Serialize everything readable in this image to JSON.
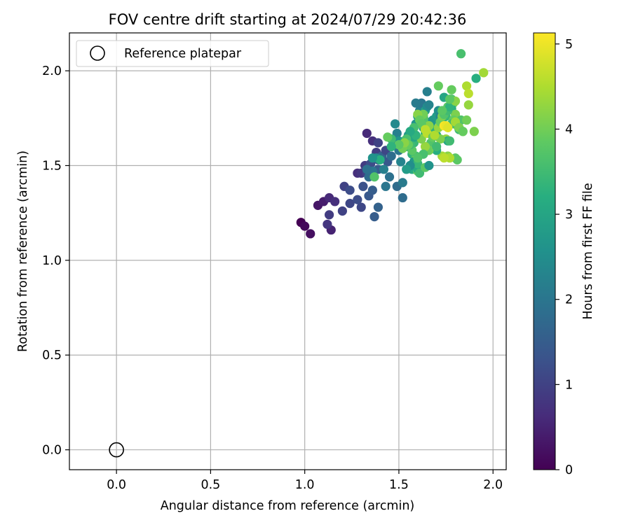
{
  "chart_data": {
    "type": "scatter",
    "title": "FOV centre drift starting at 2024/07/29 20:42:36",
    "xlabel": "Angular distance from reference (arcmin)",
    "ylabel": "Rotation from reference (arcmin)",
    "xlim": [
      -0.25,
      2.07
    ],
    "ylim": [
      -0.105,
      2.2
    ],
    "xticks": [
      0.0,
      0.5,
      1.0,
      1.5,
      2.0
    ],
    "xtick_labels": [
      "0.0",
      "0.5",
      "1.0",
      "1.5",
      "2.0"
    ],
    "yticks": [
      0.0,
      0.5,
      1.0,
      1.5,
      2.0
    ],
    "ytick_labels": [
      "0.0",
      "0.5",
      "1.0",
      "1.5",
      "2.0"
    ],
    "grid": true,
    "legend": {
      "position": "top-left",
      "entries": [
        "Reference platepar"
      ]
    },
    "reference_point": {
      "x": 0.0,
      "y": 0.0,
      "marker": "open-circle"
    },
    "colorbar": {
      "label": "Hours from first FF file",
      "min": 0,
      "max": 5.13,
      "ticks": [
        0,
        1,
        2,
        3,
        4,
        5
      ],
      "tick_labels": [
        "0",
        "1",
        "2",
        "3",
        "4",
        "5"
      ],
      "colormap": "viridis"
    },
    "series": [
      {
        "points": [
          [
            0.98,
            1.2,
            0.0
          ],
          [
            1.0,
            1.18,
            0.1
          ],
          [
            1.03,
            1.14,
            0.2
          ],
          [
            1.07,
            1.29,
            0.3
          ],
          [
            1.1,
            1.31,
            0.4
          ],
          [
            1.14,
            1.16,
            0.5
          ],
          [
            1.13,
            1.33,
            0.6
          ],
          [
            1.16,
            1.31,
            0.7
          ],
          [
            1.12,
            1.19,
            0.8
          ],
          [
            1.13,
            1.24,
            0.9
          ],
          [
            1.2,
            1.26,
            1.0
          ],
          [
            1.21,
            1.39,
            1.0
          ],
          [
            1.24,
            1.3,
            1.1
          ],
          [
            1.24,
            1.37,
            1.2
          ],
          [
            1.3,
            1.28,
            1.1
          ],
          [
            1.28,
            1.32,
            1.2
          ],
          [
            1.31,
            1.39,
            1.3
          ],
          [
            1.34,
            1.34,
            1.4
          ],
          [
            1.36,
            1.37,
            1.5
          ],
          [
            1.37,
            1.23,
            1.5
          ],
          [
            1.39,
            1.28,
            1.6
          ],
          [
            1.28,
            1.46,
            0.7
          ],
          [
            1.3,
            1.46,
            0.8
          ],
          [
            1.32,
            1.5,
            0.9
          ],
          [
            1.33,
            1.46,
            1.0
          ],
          [
            1.35,
            1.51,
            1.2
          ],
          [
            1.33,
            1.67,
            0.6
          ],
          [
            1.36,
            1.63,
            0.7
          ],
          [
            1.38,
            1.57,
            0.9
          ],
          [
            1.39,
            1.62,
            1.0
          ],
          [
            1.39,
            1.53,
            1.3
          ],
          [
            1.39,
            1.48,
            1.5
          ],
          [
            1.41,
            1.55,
            1.6
          ],
          [
            1.43,
            1.58,
            1.1
          ],
          [
            1.44,
            1.52,
            1.4
          ],
          [
            1.43,
            1.39,
            2.0
          ],
          [
            1.45,
            1.44,
            1.9
          ],
          [
            1.42,
            1.48,
            2.2
          ],
          [
            1.38,
            1.54,
            2.4
          ],
          [
            1.36,
            1.47,
            2.0
          ],
          [
            1.34,
            1.44,
            1.8
          ],
          [
            1.33,
            1.48,
            1.9
          ],
          [
            1.46,
            1.55,
            1.8
          ],
          [
            1.47,
            1.61,
            1.9
          ],
          [
            1.49,
            1.39,
            1.8
          ],
          [
            1.52,
            1.33,
            1.8
          ],
          [
            1.52,
            1.41,
            2.1
          ],
          [
            1.51,
            1.52,
            2.3
          ],
          [
            1.5,
            1.58,
            2.0
          ],
          [
            1.48,
            1.63,
            2.1
          ],
          [
            1.49,
            1.67,
            2.2
          ],
          [
            1.48,
            1.72,
            2.4
          ],
          [
            1.5,
            1.63,
            2.6
          ],
          [
            1.52,
            1.6,
            2.8
          ],
          [
            1.53,
            1.63,
            3.0
          ],
          [
            1.54,
            1.6,
            3.2
          ],
          [
            1.55,
            1.66,
            2.7
          ],
          [
            1.56,
            1.5,
            2.9
          ],
          [
            1.57,
            1.48,
            3.1
          ],
          [
            1.57,
            1.56,
            3.3
          ],
          [
            1.58,
            1.62,
            3.4
          ],
          [
            1.59,
            1.55,
            3.6
          ],
          [
            1.6,
            1.47,
            3.9
          ],
          [
            1.59,
            1.53,
            4.1
          ],
          [
            1.57,
            1.58,
            3.8
          ],
          [
            1.56,
            1.61,
            3.5
          ],
          [
            1.58,
            1.65,
            3.0
          ],
          [
            1.59,
            1.72,
            2.6
          ],
          [
            1.6,
            1.76,
            2.8
          ],
          [
            1.61,
            1.79,
            2.2
          ],
          [
            1.62,
            1.83,
            2.0
          ],
          [
            1.59,
            1.83,
            2.1
          ],
          [
            1.63,
            1.76,
            3.2
          ],
          [
            1.64,
            1.79,
            2.9
          ],
          [
            1.65,
            1.81,
            2.5
          ],
          [
            1.66,
            1.82,
            2.3
          ],
          [
            1.65,
            1.89,
            2.2
          ],
          [
            1.63,
            1.7,
            3.0
          ],
          [
            1.64,
            1.67,
            3.4
          ],
          [
            1.65,
            1.73,
            3.7
          ],
          [
            1.66,
            1.68,
            3.6
          ],
          [
            1.67,
            1.71,
            2.9
          ],
          [
            1.68,
            1.74,
            2.7
          ],
          [
            1.69,
            1.69,
            3.3
          ],
          [
            1.7,
            1.66,
            3.1
          ],
          [
            1.7,
            1.76,
            2.8
          ],
          [
            1.71,
            1.79,
            2.5
          ],
          [
            1.72,
            1.76,
            2.3
          ],
          [
            1.73,
            1.73,
            2.6
          ],
          [
            1.74,
            1.78,
            2.9
          ],
          [
            1.74,
            1.86,
            3.0
          ],
          [
            1.75,
            1.76,
            3.4
          ],
          [
            1.76,
            1.81,
            3.8
          ],
          [
            1.78,
            1.85,
            3.6
          ],
          [
            1.79,
            1.83,
            4.0
          ],
          [
            1.78,
            1.8,
            3.2
          ],
          [
            1.8,
            1.77,
            4.1
          ],
          [
            1.79,
            1.74,
            3.9
          ],
          [
            1.81,
            1.71,
            4.2
          ],
          [
            1.82,
            1.69,
            3.5
          ],
          [
            1.83,
            1.74,
            3.7
          ],
          [
            1.84,
            1.68,
            4.0
          ],
          [
            1.8,
            1.54,
            3.8
          ],
          [
            1.76,
            1.55,
            4.2
          ],
          [
            1.73,
            1.55,
            4.4
          ],
          [
            1.75,
            1.64,
            4.3
          ],
          [
            1.76,
            1.63,
            3.0
          ],
          [
            1.77,
            1.63,
            3.5
          ],
          [
            1.72,
            1.64,
            4.1
          ],
          [
            1.7,
            1.58,
            3.2
          ],
          [
            1.69,
            1.6,
            2.9
          ],
          [
            1.67,
            1.62,
            3.7
          ],
          [
            1.66,
            1.58,
            4.0
          ],
          [
            1.65,
            1.58,
            3.9
          ],
          [
            1.64,
            1.6,
            4.3
          ],
          [
            1.63,
            1.56,
            3.6
          ],
          [
            1.62,
            1.64,
            4.1
          ],
          [
            1.64,
            1.69,
            4.5
          ],
          [
            1.65,
            1.67,
            4.6
          ],
          [
            1.66,
            1.71,
            4.2
          ],
          [
            1.63,
            1.77,
            4.0
          ],
          [
            1.6,
            1.77,
            4.2
          ],
          [
            1.61,
            1.74,
            3.9
          ],
          [
            1.62,
            1.72,
            3.8
          ],
          [
            1.58,
            1.7,
            3.6
          ],
          [
            1.59,
            1.66,
            3.3
          ],
          [
            1.56,
            1.68,
            3.1
          ],
          [
            1.54,
            1.64,
            3.6
          ],
          [
            1.55,
            1.61,
            3.9
          ],
          [
            1.52,
            1.59,
            4.0
          ],
          [
            1.53,
            1.62,
            4.2
          ],
          [
            1.5,
            1.61,
            3.8
          ],
          [
            1.46,
            1.64,
            3.5
          ],
          [
            1.44,
            1.65,
            3.9
          ],
          [
            1.46,
            1.6,
            3.3
          ],
          [
            1.37,
            1.44,
            3.7
          ],
          [
            1.4,
            1.53,
            3.2
          ],
          [
            1.36,
            1.54,
            2.6
          ],
          [
            1.6,
            1.48,
            3.1
          ],
          [
            1.61,
            1.46,
            3.5
          ],
          [
            1.58,
            1.52,
            2.7
          ],
          [
            1.6,
            1.51,
            3.4
          ],
          [
            1.64,
            1.49,
            3.8
          ],
          [
            1.66,
            1.5,
            2.6
          ],
          [
            1.68,
            1.65,
            3.9
          ],
          [
            1.69,
            1.66,
            4.5
          ],
          [
            1.71,
            1.7,
            4.3
          ],
          [
            1.72,
            1.73,
            3.9
          ],
          [
            1.73,
            1.76,
            4.1
          ],
          [
            1.74,
            1.77,
            3.7
          ],
          [
            1.76,
            1.79,
            3.5
          ],
          [
            1.77,
            1.81,
            3.3
          ],
          [
            1.78,
            1.72,
            3.5
          ],
          [
            1.8,
            1.73,
            4.4
          ],
          [
            1.82,
            1.7,
            4.1
          ],
          [
            1.73,
            1.79,
            3.8
          ],
          [
            1.71,
            1.92,
            3.9
          ],
          [
            1.78,
            1.9,
            3.9
          ],
          [
            1.8,
            1.84,
            4.2
          ],
          [
            1.77,
            1.85,
            3.8
          ],
          [
            1.74,
            1.71,
            5.1
          ],
          [
            1.75,
            1.71,
            5.0
          ],
          [
            1.76,
            1.7,
            4.9
          ],
          [
            1.86,
            1.92,
            4.5
          ],
          [
            1.87,
            1.88,
            4.6
          ],
          [
            1.87,
            1.82,
            4.3
          ],
          [
            1.86,
            1.74,
            4.0
          ],
          [
            1.84,
            1.68,
            3.9
          ],
          [
            1.9,
            1.68,
            4.1
          ],
          [
            1.91,
            1.96,
            3.2
          ],
          [
            1.95,
            1.99,
            4.4
          ],
          [
            1.83,
            2.09,
            3.6
          ],
          [
            1.81,
            1.53,
            3.8
          ],
          [
            1.77,
            1.54,
            4.5
          ],
          [
            1.74,
            1.54,
            4.6
          ],
          [
            1.7,
            1.6,
            3.5
          ],
          [
            1.64,
            1.69,
            4.6
          ],
          [
            1.6,
            1.54,
            3.7
          ],
          [
            1.56,
            1.5,
            2.5
          ],
          [
            1.54,
            1.48,
            2.8
          ]
        ]
      }
    ]
  }
}
